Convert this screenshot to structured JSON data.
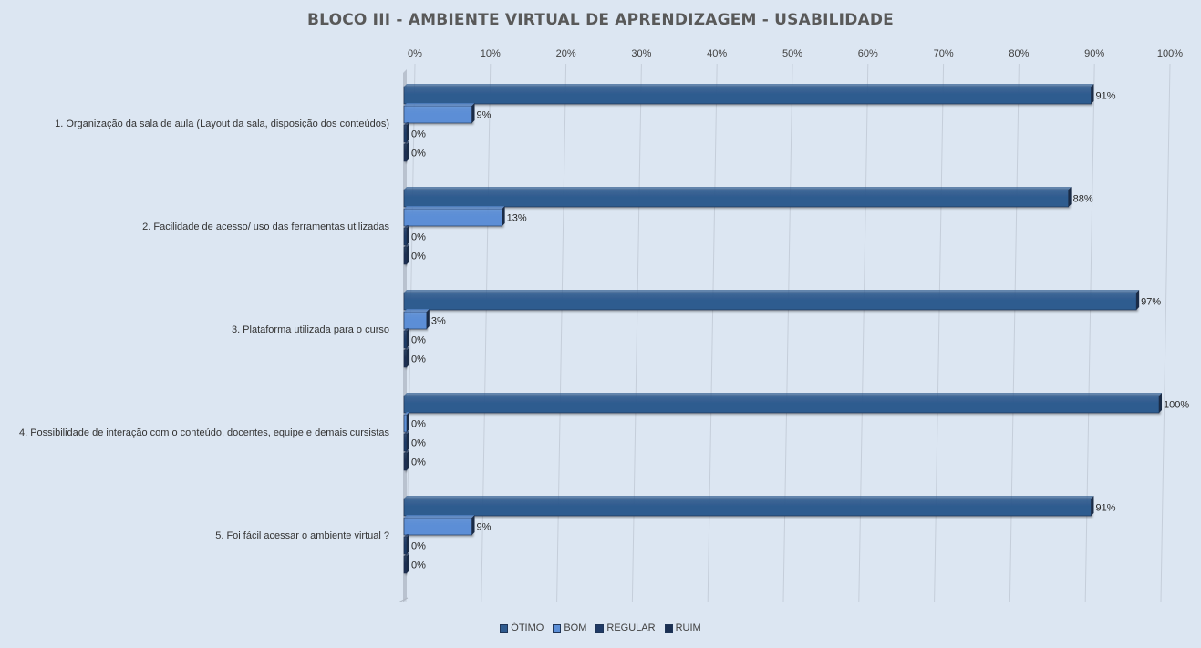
{
  "chart_data": {
    "type": "bar",
    "orientation": "horizontal",
    "title": "BLOCO III - AMBIENTE VIRTUAL DE APRENDIZAGEM - USABILIDADE",
    "xlim": [
      0,
      100
    ],
    "x_ticks": [
      "0%",
      "10%",
      "20%",
      "30%",
      "40%",
      "50%",
      "60%",
      "70%",
      "80%",
      "90%",
      "100%"
    ],
    "x_axis_position": "top",
    "grid": true,
    "legend_position": "bottom",
    "categories": [
      "1. Organização da sala de aula (Layout da sala, disposição dos conteúdos)",
      "2. Facilidade de acesso/ uso das ferramentas utilizadas",
      "3. Plataforma utilizada para o curso",
      "4. Possibilidade de interação com o conteúdo, docentes, equipe e demais cursistas",
      "5. Foi fácil acessar o ambiente virtual ?"
    ],
    "series": [
      {
        "name": "ÓTIMO",
        "color": "#2f5b8f",
        "values": [
          91,
          88,
          97,
          100,
          91
        ],
        "labels": [
          "91%",
          "88%",
          "97%",
          "100%",
          "91%"
        ]
      },
      {
        "name": "BOM",
        "color": "#5b8ed6",
        "values": [
          9,
          13,
          3,
          0,
          9
        ],
        "labels": [
          "9%",
          "13%",
          "3%",
          "0%",
          "9%"
        ]
      },
      {
        "name": "REGULAR",
        "color": "#1f3a66",
        "values": [
          0,
          0,
          0,
          0,
          0
        ],
        "labels": [
          "0%",
          "0%",
          "0%",
          "0%",
          "0%"
        ]
      },
      {
        "name": "RUIM",
        "color": "#1a2f52",
        "values": [
          0,
          0,
          0,
          0,
          0
        ],
        "labels": [
          "0%",
          "0%",
          "0%",
          "0%",
          "0%"
        ]
      }
    ]
  }
}
